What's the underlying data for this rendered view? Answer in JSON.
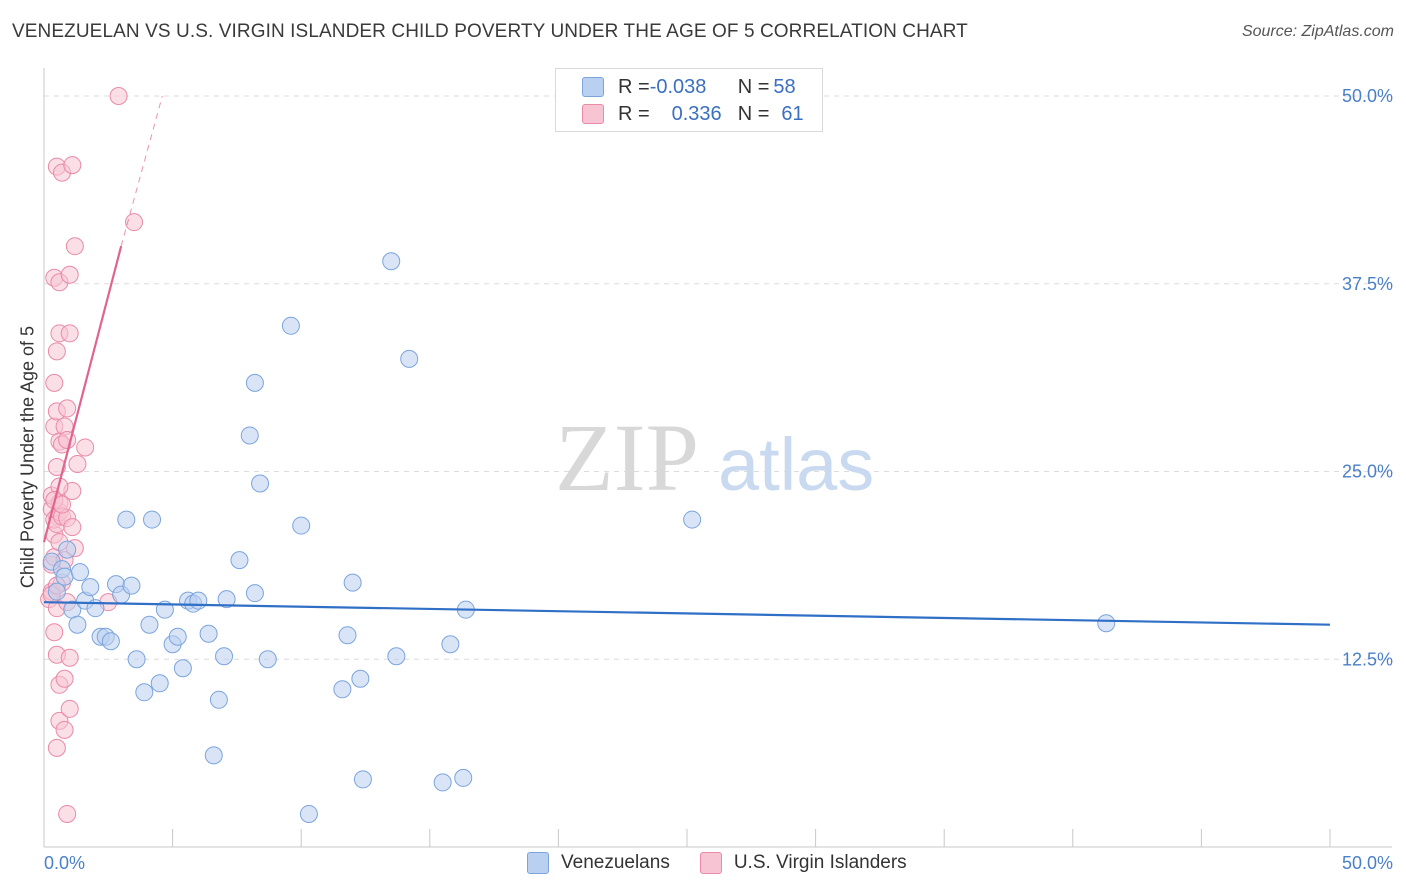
{
  "title": "VENEZUELAN VS U.S. VIRGIN ISLANDER CHILD POVERTY UNDER THE AGE OF 5 CORRELATION CHART",
  "source": "Source: ZipAtlas.com",
  "watermark": {
    "zip": "ZIP",
    "atlas": "atlas"
  },
  "colors": {
    "blue_fill": "#b9d0f0",
    "blue_stroke": "#7ba4dc",
    "blue_line": "#2f6fc6",
    "pink_fill": "#f7c4d3",
    "pink_stroke": "#e98aa8",
    "pink_line": "#e0648f",
    "grid": "#dcdcdc",
    "tick_label": "#4a7fc9"
  },
  "legend": {
    "rows": [
      {
        "r_label": "R = ",
        "r_value": "-0.038",
        "n_label": "N = ",
        "n_value": "58"
      },
      {
        "r_label": "R = ",
        "r_value": "0.336",
        "n_label": "N = ",
        "n_value": "61"
      }
    ]
  },
  "bottom_legend": {
    "series1": "Venezuelans",
    "series2": "U.S. Virgin Islanders"
  },
  "chart_data": {
    "type": "scatter",
    "title": "VENEZUELAN VS U.S. VIRGIN ISLANDER CHILD POVERTY UNDER THE AGE OF 5 CORRELATION CHART",
    "xlabel": "",
    "ylabel": "Child Poverty Under the Age of 5",
    "xlim": [
      0,
      50
    ],
    "ylim": [
      0,
      50
    ],
    "x_tick_labels": {
      "min": "0.0%",
      "max": "50.0%"
    },
    "y_ticks": [
      {
        "value": 12.5,
        "label": "12.5%"
      },
      {
        "value": 25.0,
        "label": "25.0%"
      },
      {
        "value": 37.5,
        "label": "37.5%"
      },
      {
        "value": 50.0,
        "label": "50.0%"
      }
    ],
    "series": [
      {
        "name": "Venezuelans",
        "r": -0.038,
        "n": 58,
        "trend": {
          "x": [
            0,
            50
          ],
          "y": [
            16.3,
            14.8
          ]
        },
        "points": [
          [
            0.3,
            19.0
          ],
          [
            0.5,
            17.0
          ],
          [
            0.7,
            18.5
          ],
          [
            0.8,
            18.0
          ],
          [
            0.9,
            19.8
          ],
          [
            1.1,
            15.8
          ],
          [
            1.3,
            14.8
          ],
          [
            1.4,
            18.3
          ],
          [
            1.6,
            16.4
          ],
          [
            1.8,
            17.3
          ],
          [
            2.0,
            15.9
          ],
          [
            2.2,
            14.0
          ],
          [
            2.4,
            14.0
          ],
          [
            2.6,
            13.7
          ],
          [
            2.8,
            17.5
          ],
          [
            3.0,
            16.8
          ],
          [
            3.2,
            21.8
          ],
          [
            3.4,
            17.4
          ],
          [
            3.6,
            12.5
          ],
          [
            3.9,
            10.3
          ],
          [
            4.1,
            14.8
          ],
          [
            4.2,
            21.8
          ],
          [
            4.5,
            10.9
          ],
          [
            4.7,
            15.8
          ],
          [
            5.0,
            13.5
          ],
          [
            5.2,
            14.0
          ],
          [
            5.4,
            11.9
          ],
          [
            5.6,
            16.4
          ],
          [
            5.8,
            16.2
          ],
          [
            6.0,
            16.4
          ],
          [
            6.4,
            14.2
          ],
          [
            6.8,
            9.8
          ],
          [
            6.6,
            6.1
          ],
          [
            7.0,
            12.7
          ],
          [
            7.1,
            16.5
          ],
          [
            7.6,
            19.1
          ],
          [
            8.0,
            27.4
          ],
          [
            8.2,
            30.9
          ],
          [
            8.2,
            16.9
          ],
          [
            8.4,
            24.2
          ],
          [
            8.7,
            12.5
          ],
          [
            9.6,
            34.7
          ],
          [
            10.0,
            21.4
          ],
          [
            10.3,
            2.2
          ],
          [
            11.6,
            10.5
          ],
          [
            11.8,
            14.1
          ],
          [
            12.0,
            17.6
          ],
          [
            12.3,
            11.2
          ],
          [
            12.4,
            4.5
          ],
          [
            13.5,
            39.0
          ],
          [
            13.7,
            12.7
          ],
          [
            14.2,
            32.5
          ],
          [
            15.5,
            4.3
          ],
          [
            15.8,
            13.5
          ],
          [
            16.3,
            4.6
          ],
          [
            16.4,
            15.8
          ],
          [
            25.2,
            21.8
          ],
          [
            41.3,
            14.9
          ]
        ]
      },
      {
        "name": "U.S. Virgin Islanders",
        "r": 0.336,
        "n": 61,
        "trend": {
          "x": [
            0,
            3.0
          ],
          "y": [
            20.3,
            40.0
          ]
        },
        "trend_dashed": {
          "x": [
            3.0,
            4.6
          ],
          "y": [
            40.0,
            50.0
          ]
        },
        "points": [
          [
            0.2,
            16.5
          ],
          [
            0.3,
            17.0
          ],
          [
            0.3,
            18.8
          ],
          [
            0.4,
            19.3
          ],
          [
            0.4,
            20.8
          ],
          [
            0.5,
            22.0
          ],
          [
            0.3,
            22.5
          ],
          [
            0.3,
            23.4
          ],
          [
            0.4,
            21.8
          ],
          [
            0.5,
            21.5
          ],
          [
            0.6,
            22.3
          ],
          [
            0.6,
            22.9
          ],
          [
            0.7,
            22.0
          ],
          [
            0.5,
            15.9
          ],
          [
            0.4,
            14.3
          ],
          [
            0.5,
            12.8
          ],
          [
            0.5,
            6.6
          ],
          [
            0.6,
            8.4
          ],
          [
            0.6,
            10.8
          ],
          [
            0.8,
            11.2
          ],
          [
            0.8,
            7.8
          ],
          [
            1.0,
            9.2
          ],
          [
            1.0,
            12.6
          ],
          [
            0.9,
            2.2
          ],
          [
            0.5,
            25.3
          ],
          [
            0.4,
            28.0
          ],
          [
            0.5,
            29.0
          ],
          [
            0.6,
            27.0
          ],
          [
            0.8,
            28.0
          ],
          [
            0.7,
            26.8
          ],
          [
            0.9,
            29.2
          ],
          [
            0.4,
            30.9
          ],
          [
            0.5,
            33.0
          ],
          [
            0.6,
            34.2
          ],
          [
            1.0,
            34.2
          ],
          [
            0.4,
            37.9
          ],
          [
            0.6,
            37.6
          ],
          [
            1.0,
            38.1
          ],
          [
            1.2,
            40.0
          ],
          [
            0.5,
            45.3
          ],
          [
            0.7,
            44.9
          ],
          [
            1.1,
            45.4
          ],
          [
            0.8,
            19.1
          ],
          [
            0.9,
            16.3
          ],
          [
            1.3,
            25.5
          ],
          [
            1.6,
            26.6
          ],
          [
            1.1,
            23.7
          ],
          [
            0.6,
            24.0
          ],
          [
            0.7,
            17.6
          ],
          [
            0.3,
            16.8
          ],
          [
            0.9,
            21.9
          ],
          [
            2.5,
            16.3
          ],
          [
            3.5,
            41.6
          ],
          [
            2.9,
            50.0
          ],
          [
            0.5,
            17.4
          ],
          [
            0.4,
            23.1
          ],
          [
            1.2,
            19.9
          ],
          [
            0.7,
            22.8
          ],
          [
            0.9,
            27.1
          ],
          [
            0.6,
            20.3
          ],
          [
            1.1,
            21.3
          ]
        ]
      }
    ]
  }
}
